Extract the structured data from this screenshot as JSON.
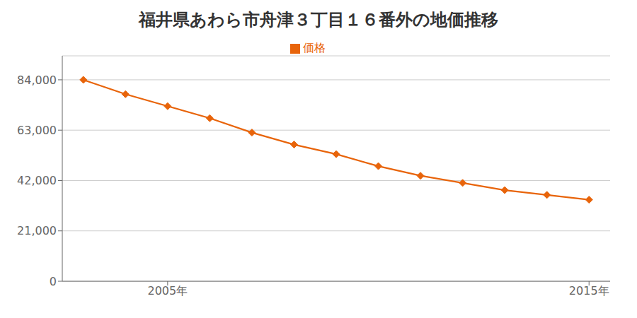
{
  "chart_data": {
    "type": "line",
    "title": "福井県あわら市舟津３丁目１６番外の地価推移",
    "x": [
      2003,
      2004,
      2005,
      2006,
      2007,
      2008,
      2009,
      2010,
      2011,
      2012,
      2013,
      2014,
      2015
    ],
    "series": [
      {
        "name": "価格",
        "color": "#e8640a",
        "marker": "diamond",
        "values": [
          84000,
          78000,
          73000,
          68000,
          62000,
          57000,
          53000,
          48000,
          44000,
          41000,
          38000,
          36000,
          34000
        ]
      }
    ],
    "xlim": [
      2002.5,
      2015.5
    ],
    "xticks": [
      {
        "value": 2005,
        "label": "2005年"
      },
      {
        "value": 2015,
        "label": "2015年"
      }
    ],
    "ylim": [
      0,
      94000
    ],
    "yticks": [
      0,
      {
        "value": 21000,
        "label": "21,000"
      },
      {
        "value": 42000,
        "label": "42,000"
      },
      {
        "value": 63000,
        "label": "63,000"
      },
      {
        "value": 84000,
        "label": "84,000"
      }
    ],
    "grid": true,
    "legend": "top"
  }
}
